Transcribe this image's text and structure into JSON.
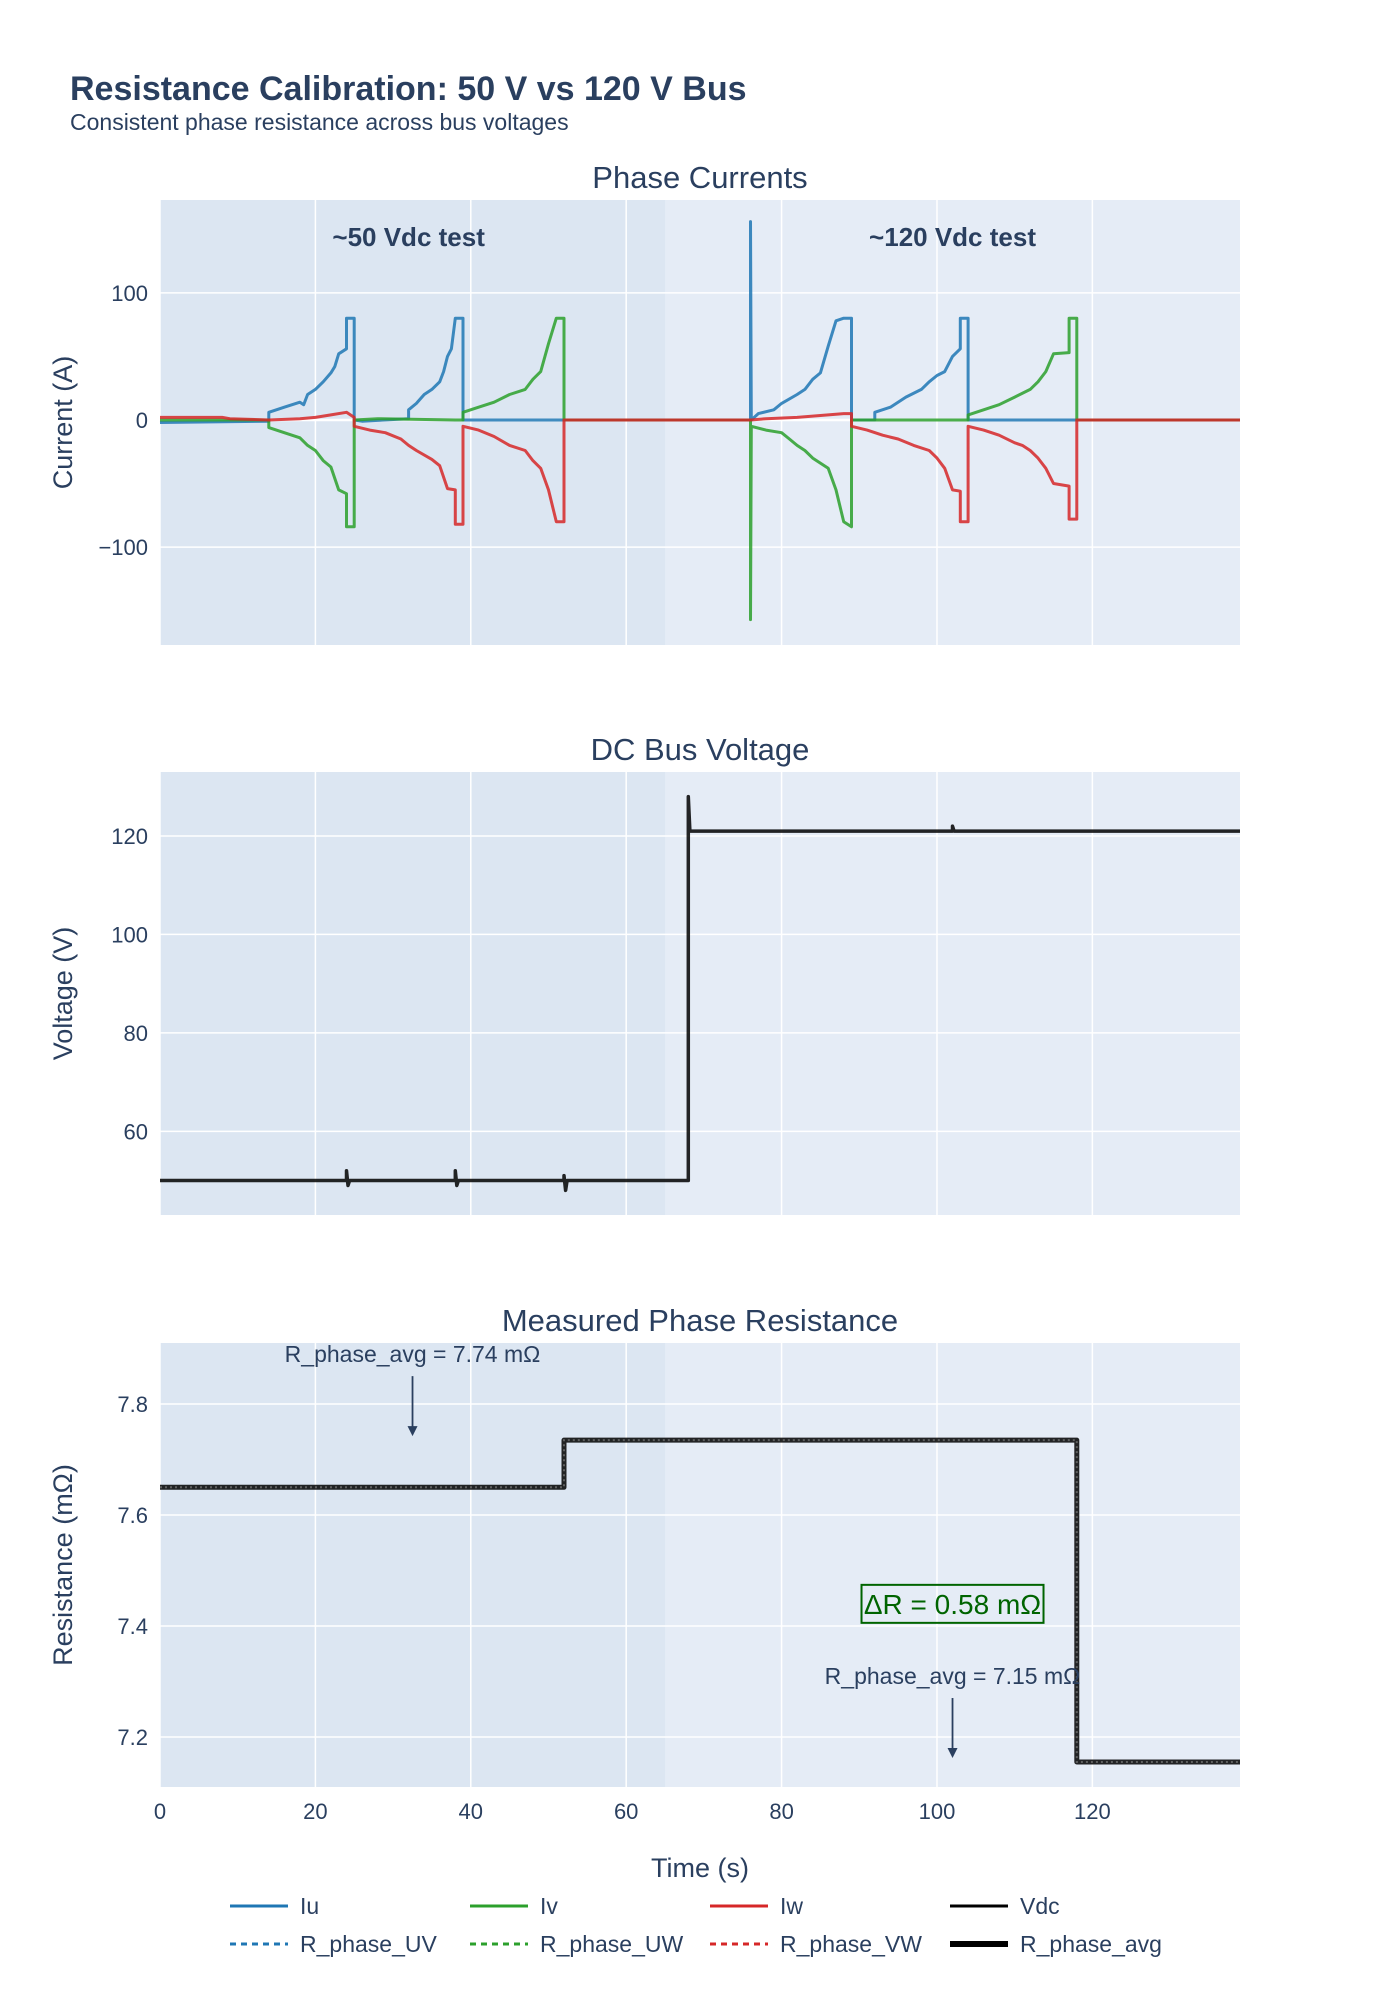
{
  "title": "Resistance Calibration: 50 V vs 120 V Bus",
  "subtitle": "Consistent phase resistance across bus voltages",
  "chart_data": [
    {
      "type": "line",
      "title": "Phase Currents",
      "xlabel": "",
      "ylabel": "Current (A)",
      "xlim": [
        0,
        139
      ],
      "ylim": [
        -177,
        173
      ],
      "xticks": [
        0,
        20,
        40,
        60,
        80,
        100,
        120
      ],
      "yticks": [
        -100,
        0,
        100
      ],
      "grid": true,
      "regions": [
        {
          "label": "~50 Vdc test",
          "x0": 0,
          "x1": 65,
          "color": "#dce6f2"
        },
        {
          "label": "~120 Vdc test",
          "x0": 65,
          "x1": 139,
          "color": "#e5ecf6"
        }
      ],
      "series": [
        {
          "name": "Iu",
          "color": "#1f77b4",
          "points": [
            [
              0,
              -2
            ],
            [
              14,
              -1
            ],
            [
              14,
              6
            ],
            [
              16,
              10
            ],
            [
              18,
              14
            ],
            [
              18.5,
              12
            ],
            [
              19,
              20
            ],
            [
              20,
              24
            ],
            [
              21,
              30
            ],
            [
              22,
              37
            ],
            [
              22.5,
              42
            ],
            [
              23,
              52
            ],
            [
              24,
              56
            ],
            [
              24,
              80
            ],
            [
              25,
              80
            ],
            [
              25,
              0
            ],
            [
              26,
              -1
            ],
            [
              32,
              1
            ],
            [
              32,
              8
            ],
            [
              33,
              13
            ],
            [
              34,
              20
            ],
            [
              35,
              24
            ],
            [
              36,
              30
            ],
            [
              36.5,
              38
            ],
            [
              37,
              50
            ],
            [
              37.5,
              56
            ],
            [
              38,
              80
            ],
            [
              39,
              80
            ],
            [
              39,
              0
            ],
            [
              52,
              0
            ],
            [
              65,
              0
            ],
            [
              76,
              0
            ],
            [
              76,
              156
            ],
            [
              76.1,
              0
            ],
            [
              77,
              5
            ],
            [
              79,
              8
            ],
            [
              80,
              13
            ],
            [
              82,
              20
            ],
            [
              83,
              24
            ],
            [
              84,
              32
            ],
            [
              85,
              37
            ],
            [
              86,
              58
            ],
            [
              87,
              78
            ],
            [
              88,
              80
            ],
            [
              89,
              80
            ],
            [
              89,
              0
            ],
            [
              92,
              0
            ],
            [
              92,
              6
            ],
            [
              94,
              10
            ],
            [
              96,
              18
            ],
            [
              98,
              24
            ],
            [
              99,
              30
            ],
            [
              100,
              35
            ],
            [
              101,
              38
            ],
            [
              102,
              50
            ],
            [
              103,
              56
            ],
            [
              103,
              80
            ],
            [
              104,
              80
            ],
            [
              104,
              0
            ],
            [
              118,
              0
            ],
            [
              139,
              0
            ]
          ]
        },
        {
          "name": "Iv",
          "color": "#2ca02c",
          "points": [
            [
              0,
              0
            ],
            [
              14,
              0
            ],
            [
              14,
              -6
            ],
            [
              16,
              -10
            ],
            [
              18,
              -14
            ],
            [
              19,
              -20
            ],
            [
              20,
              -24
            ],
            [
              21,
              -32
            ],
            [
              22,
              -37
            ],
            [
              23,
              -55
            ],
            [
              24,
              -58
            ],
            [
              24,
              -84
            ],
            [
              25,
              -84
            ],
            [
              25,
              0
            ],
            [
              28,
              1
            ],
            [
              38,
              0
            ],
            [
              39,
              0
            ],
            [
              39,
              6
            ],
            [
              41,
              10
            ],
            [
              43,
              14
            ],
            [
              45,
              20
            ],
            [
              47,
              24
            ],
            [
              48,
              32
            ],
            [
              49,
              38
            ],
            [
              50,
              60
            ],
            [
              51,
              80
            ],
            [
              52,
              80
            ],
            [
              52,
              0
            ],
            [
              65,
              0
            ],
            [
              76,
              0
            ],
            [
              76,
              -157
            ],
            [
              76.1,
              -5
            ],
            [
              78,
              -8
            ],
            [
              80,
              -10
            ],
            [
              81,
              -15
            ],
            [
              82,
              -20
            ],
            [
              83,
              -24
            ],
            [
              84,
              -30
            ],
            [
              86,
              -38
            ],
            [
              87,
              -55
            ],
            [
              88,
              -80
            ],
            [
              89,
              -84
            ],
            [
              89,
              0
            ],
            [
              92,
              0
            ],
            [
              104,
              0
            ],
            [
              104,
              4
            ],
            [
              106,
              8
            ],
            [
              108,
              12
            ],
            [
              110,
              18
            ],
            [
              112,
              24
            ],
            [
              113,
              30
            ],
            [
              114,
              38
            ],
            [
              115,
              52
            ],
            [
              117,
              53
            ],
            [
              117,
              80
            ],
            [
              118,
              80
            ],
            [
              118,
              0
            ],
            [
              139,
              0
            ]
          ]
        },
        {
          "name": "Iw",
          "color": "#d62728",
          "points": [
            [
              0,
              2
            ],
            [
              8,
              2
            ],
            [
              9,
              1
            ],
            [
              14,
              0
            ],
            [
              18,
              1
            ],
            [
              20,
              2
            ],
            [
              22,
              4
            ],
            [
              24,
              6
            ],
            [
              25,
              2
            ],
            [
              25,
              -5
            ],
            [
              27,
              -8
            ],
            [
              29,
              -10
            ],
            [
              31,
              -15
            ],
            [
              32,
              -20
            ],
            [
              33,
              -24
            ],
            [
              35,
              -31
            ],
            [
              36,
              -36
            ],
            [
              37,
              -54
            ],
            [
              38,
              -55
            ],
            [
              38,
              -82
            ],
            [
              39,
              -82
            ],
            [
              39,
              -5
            ],
            [
              41,
              -8
            ],
            [
              43,
              -13
            ],
            [
              45,
              -20
            ],
            [
              47,
              -24
            ],
            [
              48,
              -32
            ],
            [
              49,
              -38
            ],
            [
              50,
              -55
            ],
            [
              51,
              -80
            ],
            [
              52,
              -80
            ],
            [
              52,
              0
            ],
            [
              65,
              0
            ],
            [
              76,
              0
            ],
            [
              78,
              1
            ],
            [
              82,
              2
            ],
            [
              84,
              3
            ],
            [
              86,
              4
            ],
            [
              88,
              5
            ],
            [
              89,
              5
            ],
            [
              89,
              -5
            ],
            [
              91,
              -8
            ],
            [
              93,
              -12
            ],
            [
              95,
              -15
            ],
            [
              97,
              -20
            ],
            [
              99,
              -24
            ],
            [
              100,
              -30
            ],
            [
              101,
              -38
            ],
            [
              102,
              -55
            ],
            [
              103,
              -56
            ],
            [
              103,
              -80
            ],
            [
              104,
              -80
            ],
            [
              104,
              -5
            ],
            [
              106,
              -8
            ],
            [
              108,
              -12
            ],
            [
              110,
              -18
            ],
            [
              111,
              -20
            ],
            [
              112,
              -24
            ],
            [
              113,
              -30
            ],
            [
              114,
              -38
            ],
            [
              115,
              -50
            ],
            [
              117,
              -52
            ],
            [
              117,
              -78
            ],
            [
              118,
              -78
            ],
            [
              118,
              0
            ],
            [
              139,
              0
            ]
          ]
        }
      ]
    },
    {
      "type": "line",
      "title": "DC Bus Voltage",
      "xlabel": "",
      "ylabel": "Voltage (V)",
      "xlim": [
        0,
        139
      ],
      "ylim": [
        43,
        133
      ],
      "xticks": [
        0,
        20,
        40,
        60,
        80,
        100,
        120
      ],
      "yticks": [
        60,
        80,
        100,
        120
      ],
      "grid": true,
      "series": [
        {
          "name": "Vdc",
          "color": "#000000",
          "points": [
            [
              0,
              50
            ],
            [
              24,
              50
            ],
            [
              24,
              52
            ],
            [
              24.2,
              49
            ],
            [
              24.4,
              50
            ],
            [
              38,
              50
            ],
            [
              38,
              52
            ],
            [
              38.2,
              49
            ],
            [
              38.4,
              50
            ],
            [
              52,
              50
            ],
            [
              52,
              51
            ],
            [
              52.2,
              48
            ],
            [
              52.4,
              50
            ],
            [
              68,
              50
            ],
            [
              68,
              128
            ],
            [
              68.2,
              121
            ],
            [
              100,
              121
            ],
            [
              102,
              121
            ],
            [
              102,
              122
            ],
            [
              102.2,
              121
            ],
            [
              118,
              121
            ],
            [
              139,
              121
            ]
          ]
        }
      ]
    },
    {
      "type": "line",
      "title": "Measured Phase Resistance",
      "xlabel": "Time (s)",
      "ylabel": "Resistance (mΩ)",
      "xlim": [
        0,
        139
      ],
      "ylim": [
        7.11,
        7.91
      ],
      "xticks": [
        0,
        20,
        40,
        60,
        80,
        100,
        120
      ],
      "yticks": [
        7.2,
        7.4,
        7.6,
        7.8
      ],
      "grid": true,
      "series": [
        {
          "name": "R_phase_avg",
          "color": "#000000",
          "points": [
            [
              0,
              7.65
            ],
            [
              52,
              7.65
            ],
            [
              52,
              7.735
            ],
            [
              118,
              7.735
            ],
            [
              118,
              7.155
            ],
            [
              139,
              7.155
            ]
          ]
        }
      ],
      "annotations": [
        {
          "text": "R_phase_avg = 7.74 mΩ",
          "x": 32.5,
          "y": 7.735
        },
        {
          "text": "R_phase_avg = 7.15 mΩ",
          "x": 102,
          "y": 7.155
        },
        {
          "text": "ΔR = 0.58 mΩ",
          "x": 102,
          "y": 7.44,
          "color": "#006400"
        }
      ]
    }
  ],
  "legend": {
    "placement": "bottom",
    "items": [
      {
        "label": "Iu",
        "color": "#1f77b4",
        "dash": "solid",
        "width": 3
      },
      {
        "label": "Iv",
        "color": "#2ca02c",
        "dash": "solid",
        "width": 3
      },
      {
        "label": "Iw",
        "color": "#d62728",
        "dash": "solid",
        "width": 3
      },
      {
        "label": "Vdc",
        "color": "#000000",
        "dash": "solid",
        "width": 3
      },
      {
        "label": "R_phase_UV",
        "color": "#1f77b4",
        "dash": "dot",
        "width": 3
      },
      {
        "label": "R_phase_UW",
        "color": "#2ca02c",
        "dash": "dot",
        "width": 3
      },
      {
        "label": "R_phase_VW",
        "color": "#d62728",
        "dash": "dot",
        "width": 3
      },
      {
        "label": "R_phase_avg",
        "color": "#000000",
        "dash": "solid",
        "width": 6
      }
    ]
  }
}
